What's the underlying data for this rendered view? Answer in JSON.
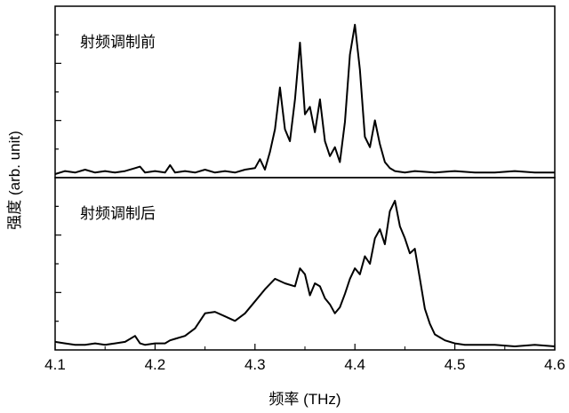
{
  "chart_data": {
    "type": "line",
    "xlabel": "频率 (THz)",
    "ylabel": "强度 (arb. unit)",
    "xlim": [
      4.1,
      4.6
    ],
    "xticks": [
      "4.1",
      "4.2",
      "4.3",
      "4.4",
      "4.5",
      "4.6"
    ],
    "yticks_labeled": false,
    "grid": false,
    "panels": [
      {
        "label": "射频调制前",
        "ylim": [
          0,
          1.1
        ],
        "series": [
          {
            "x": [
              4.1,
              4.11,
              4.12,
              4.13,
              4.14,
              4.15,
              4.16,
              4.17,
              4.18,
              4.185,
              4.19,
              4.2,
              4.21,
              4.215,
              4.22,
              4.23,
              4.24,
              4.25,
              4.26,
              4.27,
              4.28,
              4.29,
              4.3,
              4.305,
              4.31,
              4.315,
              4.32,
              4.325,
              4.33,
              4.335,
              4.34,
              4.345,
              4.35,
              4.355,
              4.36,
              4.365,
              4.37,
              4.375,
              4.38,
              4.385,
              4.39,
              4.395,
              4.4,
              4.405,
              4.41,
              4.415,
              4.42,
              4.425,
              4.43,
              4.435,
              4.44,
              4.45,
              4.46,
              4.48,
              4.5,
              4.52,
              4.54,
              4.56,
              4.58,
              4.6
            ],
            "y": [
              0.0,
              0.02,
              0.01,
              0.03,
              0.01,
              0.02,
              0.01,
              0.02,
              0.04,
              0.05,
              0.01,
              0.02,
              0.01,
              0.06,
              0.01,
              0.02,
              0.01,
              0.03,
              0.01,
              0.02,
              0.01,
              0.03,
              0.04,
              0.1,
              0.03,
              0.15,
              0.3,
              0.58,
              0.3,
              0.22,
              0.5,
              0.88,
              0.4,
              0.45,
              0.28,
              0.5,
              0.22,
              0.12,
              0.18,
              0.08,
              0.35,
              0.8,
              1.0,
              0.7,
              0.25,
              0.18,
              0.36,
              0.2,
              0.08,
              0.04,
              0.02,
              0.01,
              0.02,
              0.01,
              0.02,
              0.01,
              0.01,
              0.02,
              0.01,
              0.01
            ]
          }
        ]
      },
      {
        "label": "射频调制后",
        "ylim": [
          0,
          1.1
        ],
        "series": [
          {
            "x": [
              4.1,
              4.11,
              4.12,
              4.13,
              4.14,
              4.15,
              4.16,
              4.17,
              4.18,
              4.185,
              4.19,
              4.2,
              4.21,
              4.215,
              4.22,
              4.23,
              4.24,
              4.25,
              4.26,
              4.27,
              4.28,
              4.29,
              4.3,
              4.31,
              4.32,
              4.33,
              4.34,
              4.345,
              4.35,
              4.355,
              4.36,
              4.365,
              4.37,
              4.375,
              4.38,
              4.385,
              4.39,
              4.395,
              4.4,
              4.405,
              4.41,
              4.415,
              4.42,
              4.425,
              4.43,
              4.435,
              4.44,
              4.445,
              4.45,
              4.455,
              4.46,
              4.465,
              4.47,
              4.475,
              4.48,
              4.49,
              4.5,
              4.51,
              4.52,
              4.54,
              4.56,
              4.58,
              4.6
            ],
            "y": [
              0.03,
              0.02,
              0.01,
              0.01,
              0.02,
              0.01,
              0.02,
              0.03,
              0.07,
              0.02,
              0.01,
              0.02,
              0.02,
              0.04,
              0.05,
              0.07,
              0.12,
              0.22,
              0.23,
              0.2,
              0.17,
              0.22,
              0.3,
              0.38,
              0.45,
              0.42,
              0.4,
              0.52,
              0.48,
              0.34,
              0.42,
              0.4,
              0.32,
              0.28,
              0.22,
              0.26,
              0.35,
              0.45,
              0.52,
              0.48,
              0.6,
              0.55,
              0.72,
              0.78,
              0.68,
              0.9,
              0.97,
              0.8,
              0.72,
              0.62,
              0.65,
              0.45,
              0.25,
              0.15,
              0.08,
              0.04,
              0.02,
              0.01,
              0.01,
              0.01,
              0.0,
              0.01,
              0.0
            ]
          }
        ]
      }
    ]
  }
}
